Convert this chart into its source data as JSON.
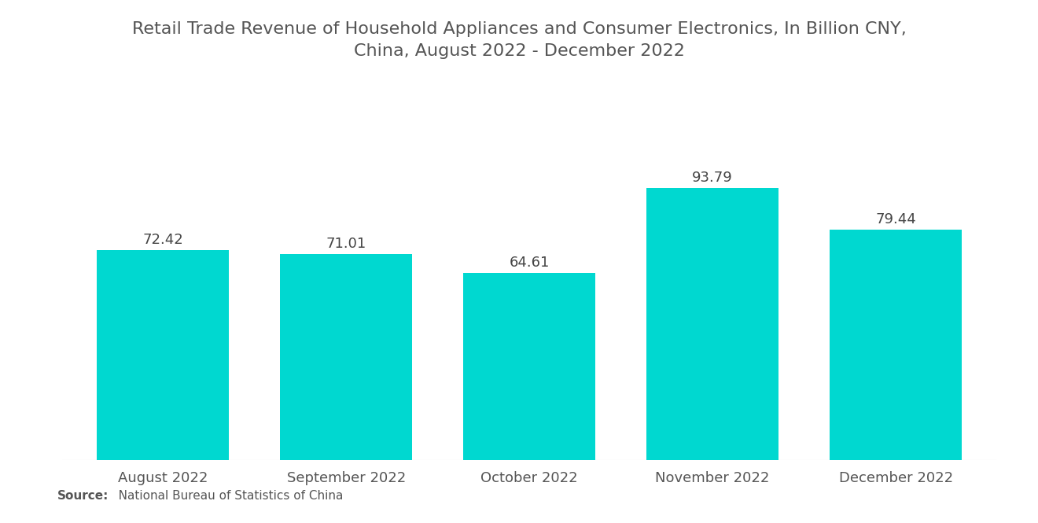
{
  "title": "Retail Trade Revenue of Household Appliances and Consumer Electronics, In Billion CNY,\nChina, August 2022 - December 2022",
  "categories": [
    "August 2022",
    "September 2022",
    "October 2022",
    "November 2022",
    "December 2022"
  ],
  "values": [
    72.42,
    71.01,
    64.61,
    93.79,
    79.44
  ],
  "bar_color": "#00D8D0",
  "bar_width": 0.72,
  "value_labels": [
    "72.42",
    "71.01",
    "64.61",
    "93.79",
    "79.44"
  ],
  "ylim": [
    0,
    108
  ],
  "title_fontsize": 16,
  "label_fontsize": 13,
  "value_fontsize": 13,
  "source_bold": "Source:",
  "source_normal": "   National Bureau of Statistics of China",
  "background_color": "#ffffff",
  "text_color": "#555555",
  "bar_value_color": "#444444"
}
